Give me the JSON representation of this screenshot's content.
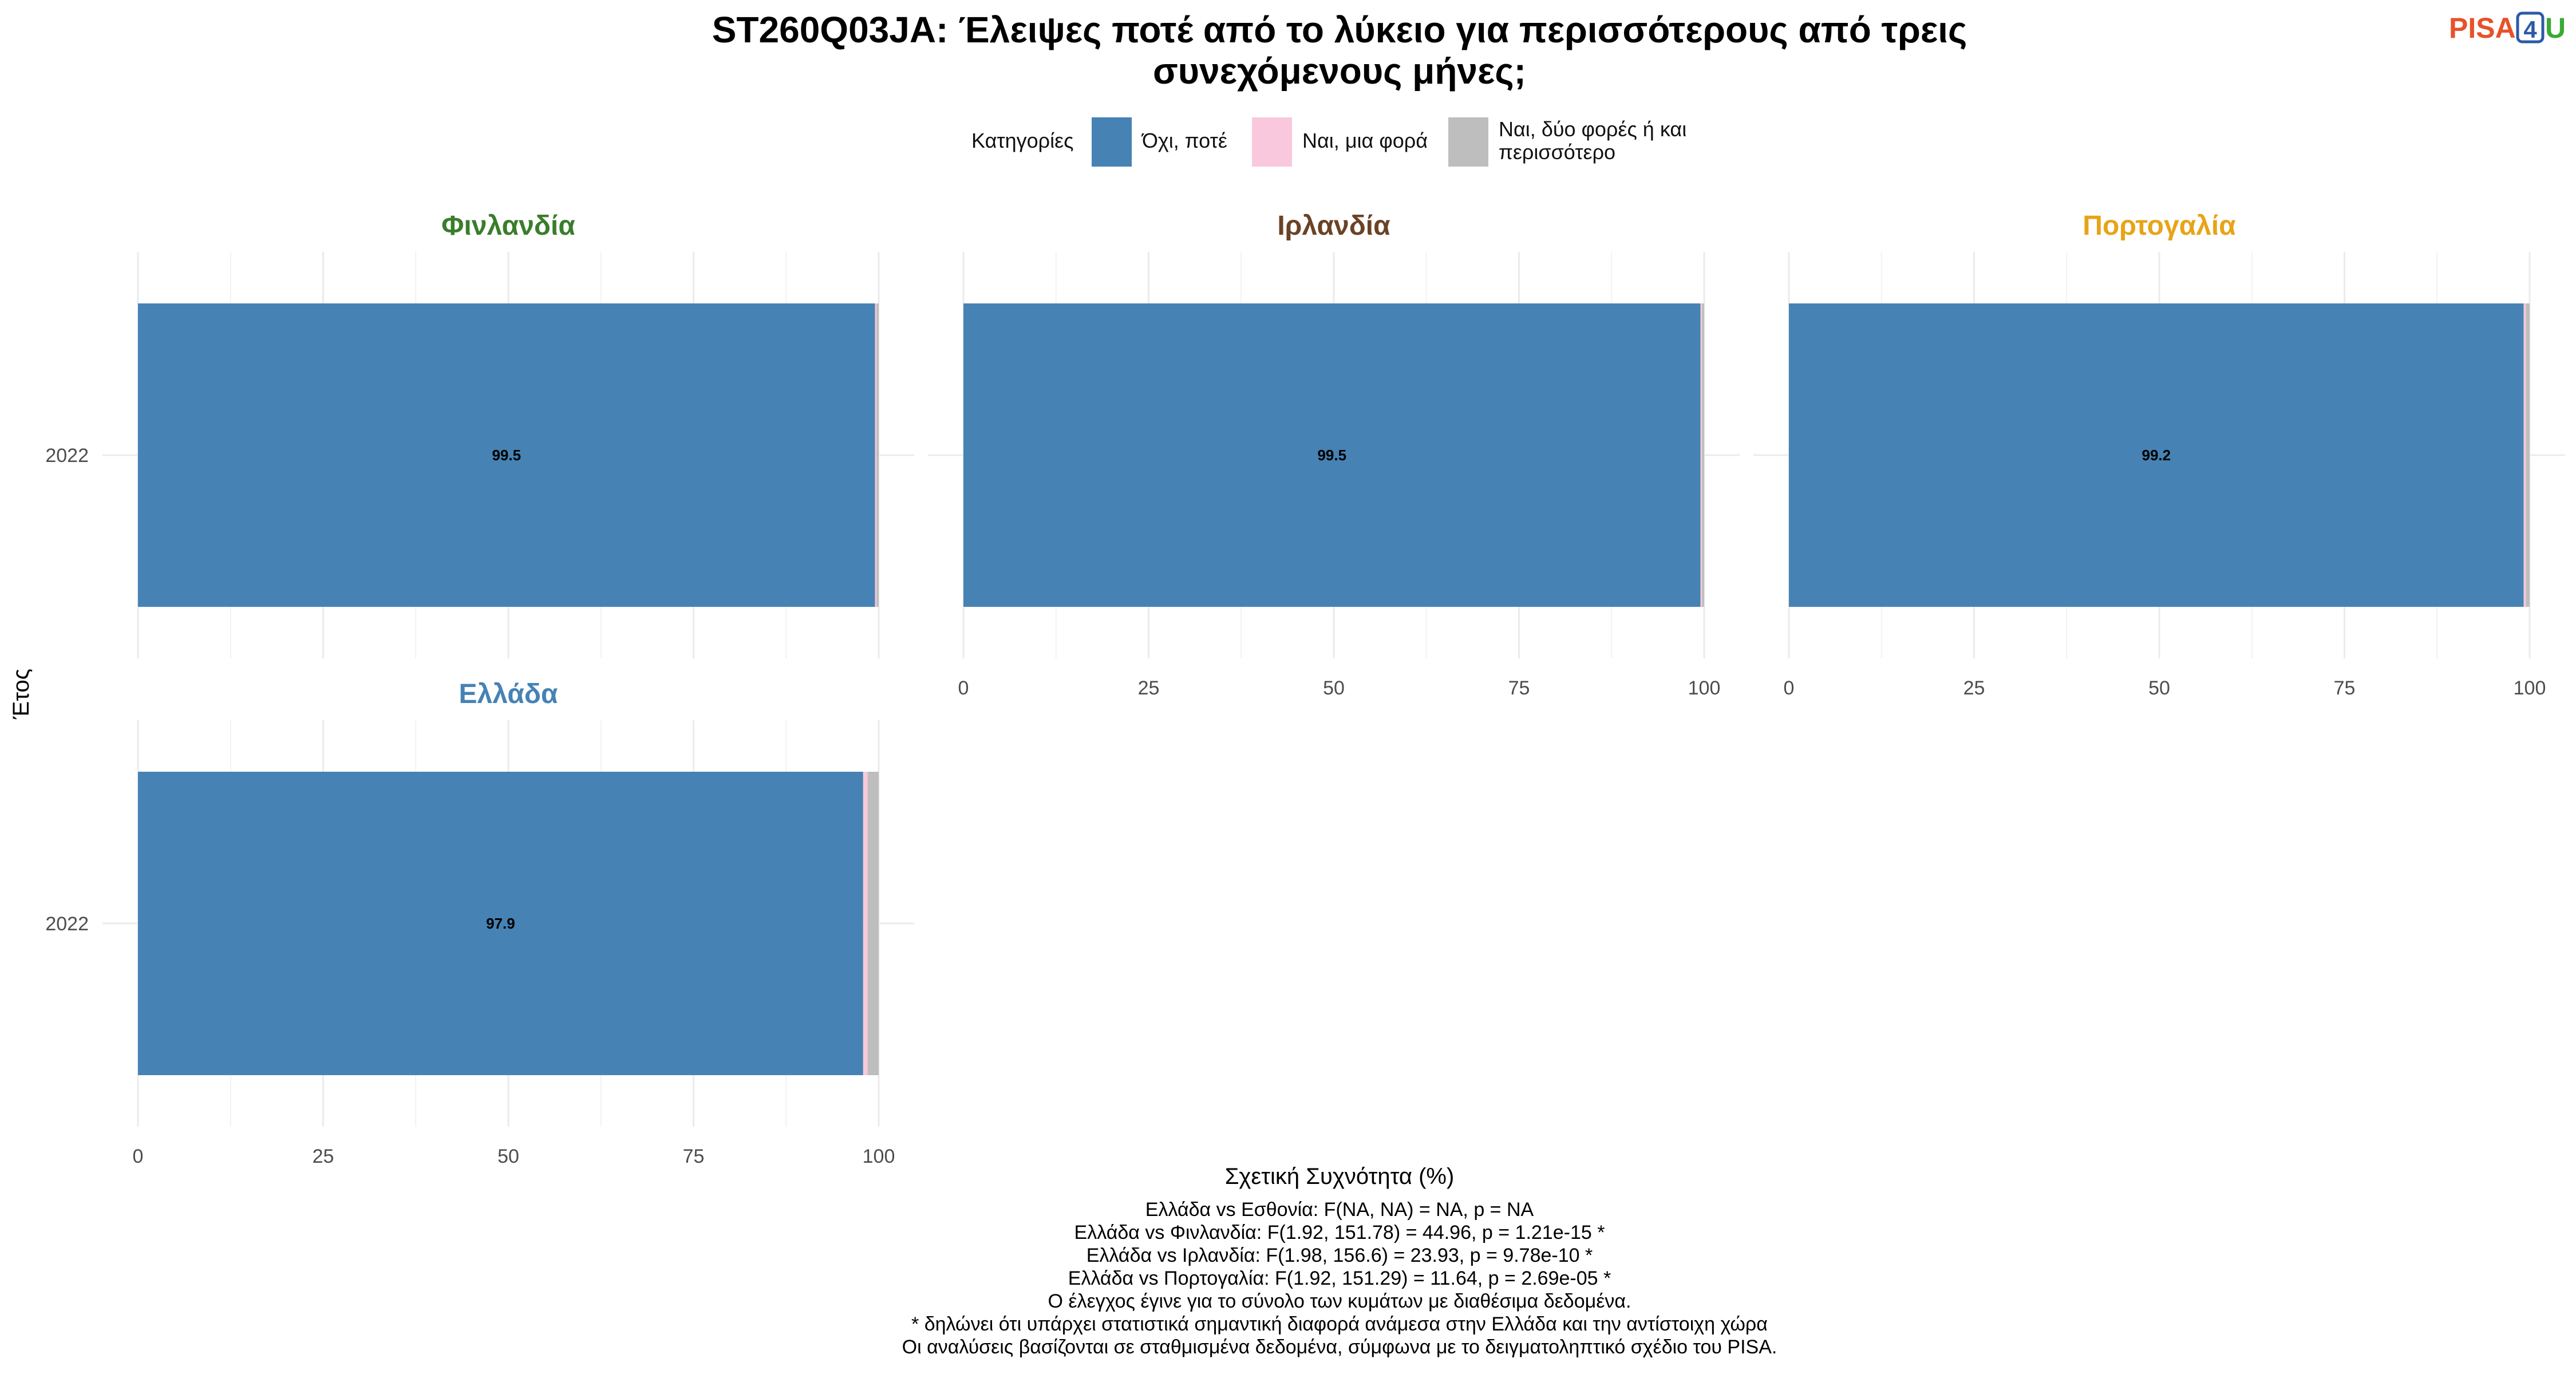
{
  "title": [
    "ST260Q03JA: Έλειψες ποτέ από το λύκειο για περισσότερους από τρεις",
    "συνεχόμενους μήνες;"
  ],
  "logo": {
    "pisa": "PISA",
    "four": "4",
    "u": "U",
    "pisa_color": "#e8512a",
    "four_color": "#2b5aa8",
    "u_color": "#3aa935"
  },
  "legend": {
    "title": "Κατηγορίες",
    "position": "top",
    "items": [
      {
        "label": [
          "Όχι, ποτέ"
        ],
        "color": "#4682b4"
      },
      {
        "label": [
          "Ναι, μια φορά"
        ],
        "color": "#f9c8dc"
      },
      {
        "label": [
          "Ναι, δύο φορές ή και",
          "περισσότερο"
        ],
        "color": "#bebebe"
      }
    ]
  },
  "chart_data": {
    "type": "bar",
    "orientation": "horizontal",
    "stacked": true,
    "xlabel": "Σχετική Συχνότητα (%)",
    "ylabel": "Έτος",
    "xlim": [
      0,
      100
    ],
    "xticks": [
      0,
      25,
      50,
      75,
      100
    ],
    "grid": true,
    "categories": [
      "2022"
    ],
    "series_names": [
      "Όχι, ποτέ",
      "Ναι, μια φορά",
      "Ναι, δύο φορές ή και περισσότερο"
    ],
    "panels": [
      {
        "name": "Φινλανδία",
        "color": "#3a7d2c",
        "year": "2022",
        "values": [
          99.5,
          0.2,
          0.3
        ],
        "label": "99.5",
        "show_xticks": false
      },
      {
        "name": "Ιρλανδία",
        "color": "#6b4226",
        "year": "2022",
        "values": [
          99.5,
          0.2,
          0.3
        ],
        "label": "99.5",
        "show_xticks": true
      },
      {
        "name": "Πορτογαλία",
        "color": "#e8a317",
        "year": "2022",
        "values": [
          99.2,
          0.3,
          0.5
        ],
        "label": "99.2",
        "show_xticks": true
      },
      {
        "name": "Ελλάδα",
        "color": "#4682b4",
        "year": "2022",
        "values": [
          97.9,
          0.6,
          1.5
        ],
        "label": "97.9",
        "show_xticks": true
      }
    ]
  },
  "notes": [
    "Ελλάδα vs Εσθονία: F(NA, NA) = NA, p = NA",
    "Ελλάδα vs Φινλανδία: F(1.92, 151.78) = 44.96, p = 1.21e-15 *",
    "Ελλάδα vs Ιρλανδία: F(1.98, 156.6) = 23.93, p = 9.78e-10 *",
    "Ελλάδα vs Πορτογαλία: F(1.92, 151.29) = 11.64, p = 2.69e-05 *",
    "Ο έλεγχος έγινε για το σύνολο των κυμάτων με διαθέσιμα δεδομένα.",
    "* δηλώνει ότι υπάρχει στατιστικά σημαντική διαφορά ανάμεσα στην Ελλάδα και την αντίστοιχη χώρα",
    "Οι αναλύσεις βασίζονται σε σταθμισμένα δεδομένα, σύμφωνα με το δειγματοληπτικό σχέδιο του PISA."
  ]
}
